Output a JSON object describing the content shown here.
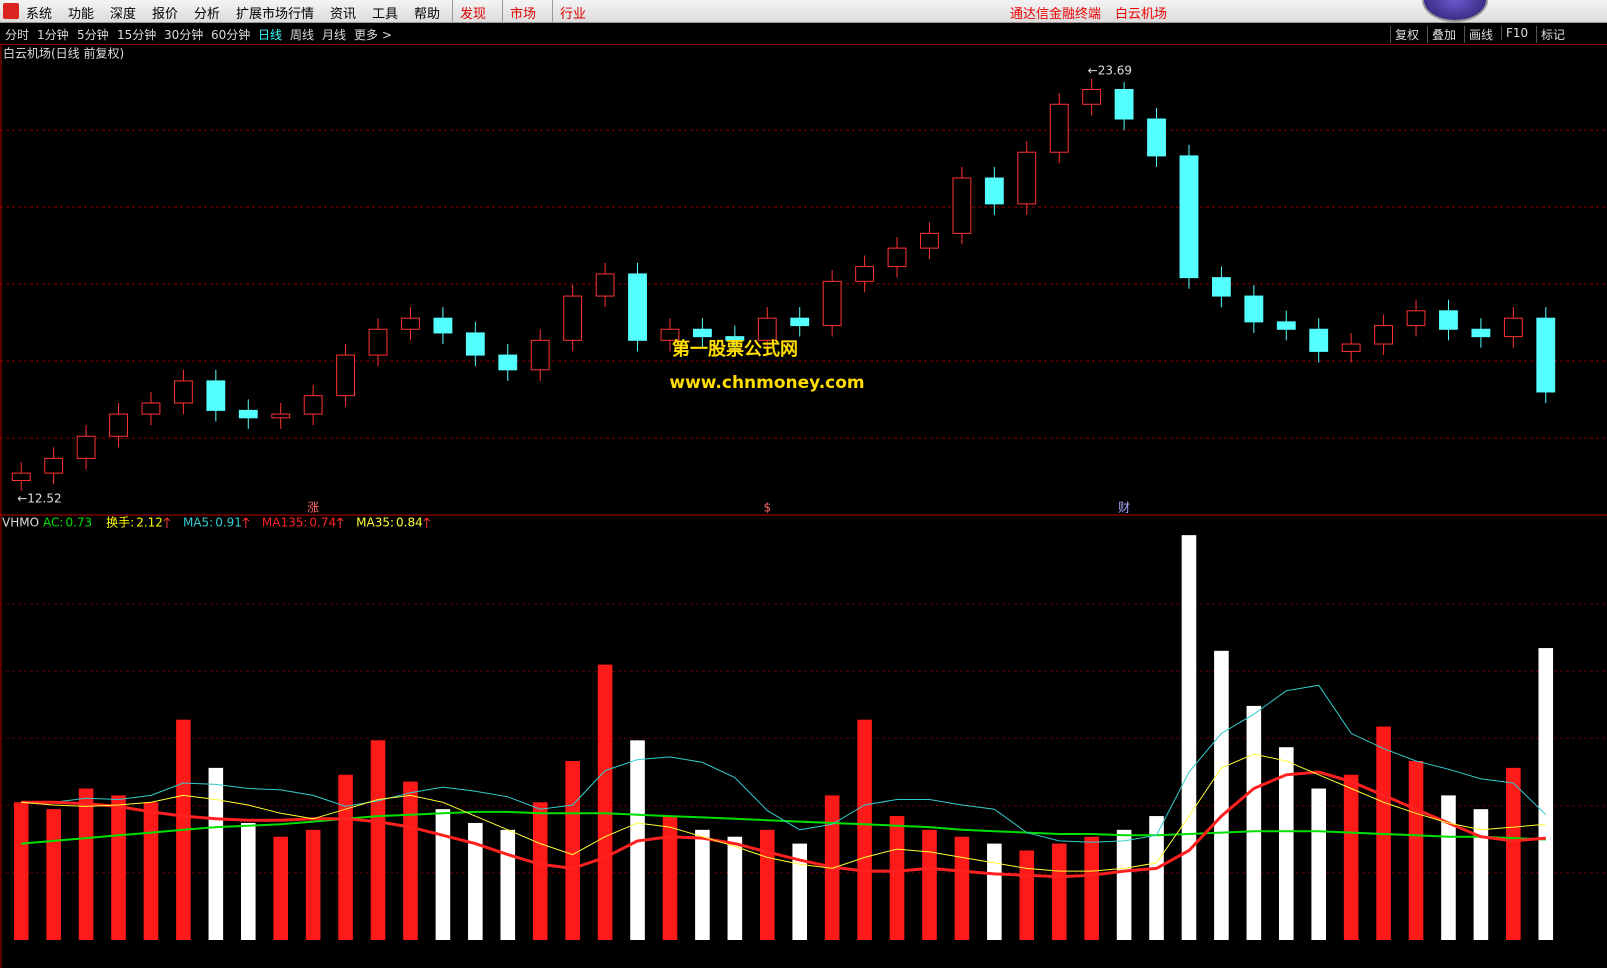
{
  "menu": {
    "items": [
      "系统",
      "功能",
      "深度",
      "报价",
      "分析",
      "扩展市场行情",
      "资讯",
      "工具",
      "帮助"
    ],
    "highlight": [
      "发现",
      "市场",
      "行业"
    ],
    "right": [
      "通达信金融终端",
      "白云机场"
    ]
  },
  "toolbar": {
    "periods": [
      "分时",
      "1分钟",
      "5分钟",
      "15分钟",
      "30分钟",
      "60分钟",
      "日线",
      "周线",
      "月线",
      "更多 >"
    ],
    "active": 6,
    "tools": [
      "复权",
      "叠加",
      "画线",
      "F10",
      "标记"
    ]
  },
  "watermark": [
    "第一股票公式网",
    "www.chnmoney.com"
  ],
  "chart_data": [
    {
      "type": "candlestick",
      "title": "白云机场(日线 前复权)",
      "ylim": [
        12.0,
        24.2
      ],
      "ygrid": [
        13.95,
        16.04,
        18.13,
        20.21,
        22.3
      ],
      "up_color": "#ff3232",
      "down_color": "#54ffff",
      "open": [
        12.8,
        13.0,
        13.4,
        14.0,
        14.6,
        14.9,
        15.5,
        14.7,
        14.5,
        14.6,
        15.1,
        16.2,
        16.9,
        17.2,
        16.8,
        16.2,
        15.8,
        16.6,
        17.8,
        18.4,
        16.6,
        16.9,
        16.7,
        16.6,
        17.2,
        17.0,
        18.2,
        18.6,
        19.1,
        19.5,
        21.0,
        20.3,
        21.7,
        23.0,
        23.4,
        22.6,
        21.6,
        18.3,
        17.8,
        17.1,
        16.9,
        16.3,
        16.5,
        17.0,
        17.4,
        16.9,
        16.7,
        17.2
      ],
      "high": [
        13.3,
        13.7,
        14.3,
        14.9,
        15.2,
        15.8,
        15.8,
        15.0,
        14.9,
        15.4,
        16.5,
        17.2,
        17.5,
        17.5,
        17.1,
        16.5,
        16.9,
        18.1,
        18.7,
        18.7,
        17.2,
        17.2,
        17.0,
        17.5,
        17.5,
        18.5,
        18.9,
        19.4,
        19.8,
        21.3,
        21.3,
        22.0,
        23.3,
        23.69,
        23.6,
        22.9,
        21.9,
        18.6,
        18.1,
        17.4,
        17.2,
        16.8,
        17.3,
        17.7,
        17.7,
        17.2,
        17.5,
        17.5
      ],
      "low": [
        12.52,
        12.7,
        13.1,
        13.7,
        14.3,
        14.6,
        14.4,
        14.2,
        14.2,
        14.3,
        14.8,
        15.9,
        16.6,
        16.5,
        15.9,
        15.5,
        15.5,
        16.3,
        17.5,
        16.3,
        16.3,
        16.4,
        16.3,
        16.3,
        16.7,
        16.7,
        17.9,
        18.3,
        18.8,
        19.2,
        20.0,
        20.0,
        21.4,
        22.7,
        22.3,
        21.3,
        18.0,
        17.5,
        16.8,
        16.6,
        16.0,
        16.0,
        16.2,
        16.7,
        16.6,
        16.4,
        16.4,
        14.9
      ],
      "close": [
        13.0,
        13.4,
        14.0,
        14.6,
        14.9,
        15.5,
        14.7,
        14.5,
        14.6,
        15.1,
        16.2,
        16.9,
        17.2,
        16.8,
        16.2,
        15.8,
        16.6,
        17.8,
        18.4,
        16.6,
        16.9,
        16.7,
        16.6,
        17.2,
        17.0,
        18.2,
        18.6,
        19.1,
        19.5,
        21.0,
        20.3,
        21.7,
        23.0,
        23.4,
        22.6,
        21.6,
        18.3,
        17.8,
        17.1,
        16.9,
        16.3,
        16.5,
        17.0,
        17.4,
        16.9,
        16.7,
        17.2,
        15.2
      ],
      "annotations": [
        {
          "value": 23.69,
          "label": "←23.69",
          "at": 33
        },
        {
          "value": 12.52,
          "label": "←12.52",
          "at": 0
        }
      ],
      "events": [
        {
          "label": "涨",
          "at": 9
        },
        {
          "label": "$",
          "at": 23
        },
        {
          "label": "财",
          "at": 34
        }
      ]
    },
    {
      "type": "indicator",
      "title": "VHMO",
      "ylim": [
        0,
        3.05
      ],
      "up_color": "#ff1a1a",
      "down_color": "#ffffff",
      "bars": {
        "name": "换手:",
        "color": "#ffff00",
        "values": [
          1.0,
          0.95,
          1.1,
          1.05,
          1.0,
          1.6,
          1.25,
          0.85,
          0.75,
          0.8,
          1.2,
          1.45,
          1.15,
          0.95,
          0.85,
          0.8,
          1.0,
          1.3,
          2.0,
          1.45,
          0.9,
          0.8,
          0.75,
          0.8,
          0.7,
          1.05,
          1.6,
          0.9,
          0.8,
          0.75,
          0.7,
          0.65,
          0.7,
          0.75,
          0.8,
          0.9,
          2.94,
          2.1,
          1.7,
          1.4,
          1.1,
          1.2,
          1.55,
          1.3,
          1.05,
          0.95,
          1.25,
          2.12
        ]
      },
      "series": [
        {
          "name": "AC:",
          "color": "#00e000",
          "width": 2,
          "values": [
            0.7,
            0.72,
            0.74,
            0.76,
            0.78,
            0.8,
            0.82,
            0.83,
            0.84,
            0.86,
            0.88,
            0.9,
            0.91,
            0.92,
            0.93,
            0.93,
            0.92,
            0.92,
            0.92,
            0.91,
            0.9,
            0.89,
            0.88,
            0.87,
            0.86,
            0.85,
            0.84,
            0.83,
            0.82,
            0.8,
            0.79,
            0.78,
            0.77,
            0.77,
            0.76,
            0.76,
            0.77,
            0.78,
            0.79,
            0.79,
            0.79,
            0.78,
            0.77,
            0.76,
            0.75,
            0.75,
            0.74,
            0.73
          ]
        },
        {
          "name": "MA5:",
          "color": "#33cccc",
          "width": 1,
          "values": [
            1.0,
            1.0,
            1.03,
            1.02,
            1.05,
            1.14,
            1.13,
            1.1,
            1.09,
            1.05,
            0.97,
            1.01,
            1.07,
            1.11,
            1.08,
            1.04,
            0.95,
            0.98,
            1.23,
            1.31,
            1.33,
            1.29,
            1.18,
            0.94,
            0.8,
            0.84,
            0.98,
            1.02,
            1.02,
            0.98,
            0.95,
            0.78,
            0.72,
            0.71,
            0.72,
            0.76,
            1.22,
            1.5,
            1.64,
            1.81,
            1.85,
            1.5,
            1.39,
            1.3,
            1.24,
            1.17,
            1.14,
            0.91
          ]
        },
        {
          "name": "MA135:",
          "color": "#ff2020",
          "width": 3,
          "values": [
            1.0,
            1.0,
            0.99,
            0.97,
            0.93,
            0.9,
            0.88,
            0.87,
            0.87,
            0.88,
            0.88,
            0.86,
            0.82,
            0.76,
            0.7,
            0.62,
            0.55,
            0.52,
            0.6,
            0.72,
            0.75,
            0.74,
            0.7,
            0.64,
            0.58,
            0.53,
            0.5,
            0.5,
            0.52,
            0.5,
            0.48,
            0.47,
            0.46,
            0.47,
            0.5,
            0.52,
            0.65,
            0.9,
            1.1,
            1.2,
            1.22,
            1.15,
            1.05,
            0.95,
            0.85,
            0.75,
            0.72,
            0.74
          ]
        },
        {
          "name": "MA35:",
          "color": "#ffff33",
          "width": 1,
          "values": [
            1.0,
            0.98,
            0.97,
            0.98,
            1.0,
            1.05,
            1.02,
            0.98,
            0.92,
            0.88,
            0.95,
            1.02,
            1.05,
            1.0,
            0.9,
            0.8,
            0.7,
            0.62,
            0.75,
            0.85,
            0.82,
            0.75,
            0.68,
            0.6,
            0.55,
            0.52,
            0.6,
            0.66,
            0.64,
            0.6,
            0.56,
            0.52,
            0.5,
            0.5,
            0.52,
            0.56,
            0.9,
            1.25,
            1.35,
            1.3,
            1.2,
            1.1,
            1.0,
            0.92,
            0.85,
            0.8,
            0.82,
            0.84
          ]
        }
      ]
    }
  ]
}
